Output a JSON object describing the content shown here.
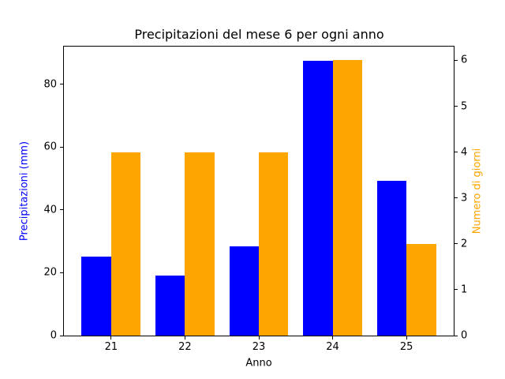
{
  "figure": {
    "background": "#ffffff"
  },
  "chart_data": {
    "type": "bar",
    "title": "Precipitazioni del mese 6 per ogni anno",
    "xlabel": "Anno",
    "categories": [
      21,
      22,
      23,
      24,
      25
    ],
    "series": [
      {
        "name": "Precipitazioni (mm)",
        "yaxis": "left",
        "color": "#0000ff",
        "offset": -0.4,
        "values": [
          25.2,
          19.0,
          28.4,
          87.6,
          49.3
        ]
      },
      {
        "name": "Numero di giorni",
        "yaxis": "right",
        "color": "#ffa500",
        "offset": 0.0,
        "values": [
          4,
          4,
          4,
          6,
          2
        ]
      }
    ],
    "bar_width": 0.4,
    "xlim": [
      20.36,
      25.64
    ],
    "left_axis": {
      "label": "Precipitazioni (mm)",
      "color": "#0000ff",
      "ticks": [
        0,
        20,
        40,
        60,
        80
      ],
      "ylim": [
        0,
        92
      ]
    },
    "right_axis": {
      "label": "Numero di giorni",
      "color": "#ffa500",
      "ticks": [
        0,
        1,
        2,
        3,
        4,
        5,
        6
      ],
      "ylim": [
        0,
        6.3
      ]
    },
    "grid": false,
    "legend_position": "none"
  }
}
